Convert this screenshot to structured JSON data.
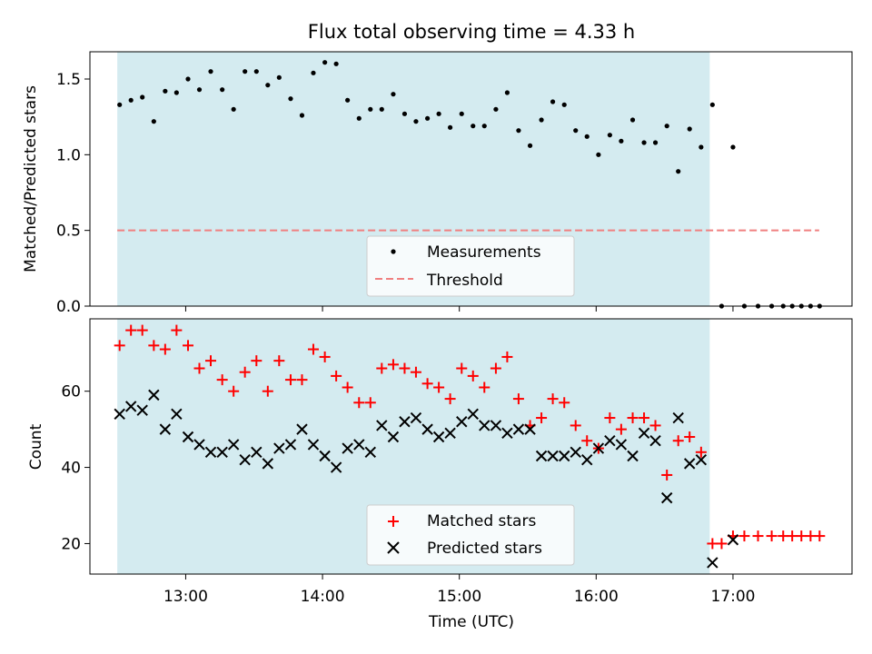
{
  "chart_data": [
    {
      "type": "scatter",
      "title": "Flux total observing time = 4.33 h",
      "ylabel": "Matched/Predicted stars",
      "xlabel": "",
      "ylim": [
        0,
        1.68
      ],
      "yticks": [
        "0.0",
        "0.5",
        "1.0",
        "1.5"
      ],
      "shaded_span": {
        "x_start": 12.5,
        "x_end": 16.83,
        "color": "#d4ebf0"
      },
      "threshold": {
        "name": "Threshold",
        "value": 0.5,
        "color": "#f08080"
      },
      "legend": {
        "placement": "lower-center",
        "entries": [
          "Measurements",
          "Threshold"
        ]
      },
      "series": [
        {
          "name": "Measurements",
          "color": "#000000",
          "marker": "dot",
          "x": [
            12.517,
            12.6,
            12.683,
            12.767,
            12.85,
            12.933,
            13.017,
            13.1,
            13.183,
            13.267,
            13.35,
            13.433,
            13.517,
            13.6,
            13.683,
            13.767,
            13.85,
            13.933,
            14.017,
            14.1,
            14.183,
            14.267,
            14.35,
            14.433,
            14.517,
            14.6,
            14.683,
            14.767,
            14.85,
            14.933,
            15.017,
            15.1,
            15.183,
            15.267,
            15.35,
            15.433,
            15.517,
            15.6,
            15.683,
            15.767,
            15.85,
            15.933,
            16.017,
            16.1,
            16.183,
            16.267,
            16.35,
            16.433,
            16.517,
            16.6,
            16.683,
            16.767,
            16.85,
            17.0
          ],
          "y": [
            1.33,
            1.36,
            1.38,
            1.22,
            1.42,
            1.41,
            1.5,
            1.43,
            1.55,
            1.43,
            1.3,
            1.55,
            1.55,
            1.46,
            1.51,
            1.37,
            1.26,
            1.54,
            1.61,
            1.6,
            1.36,
            1.24,
            1.3,
            1.3,
            1.4,
            1.27,
            1.22,
            1.24,
            1.27,
            1.18,
            1.27,
            1.19,
            1.19,
            1.3,
            1.41,
            1.16,
            1.06,
            1.23,
            1.35,
            1.33,
            1.16,
            1.12,
            1.0,
            1.13,
            1.09,
            1.23,
            1.08,
            1.08,
            1.19,
            0.89,
            1.17,
            1.05,
            1.33,
            1.05
          ]
        },
        {
          "name": "",
          "color": "#000000",
          "marker": "dot",
          "x": [
            16.917,
            17.083,
            17.183,
            17.283,
            17.367,
            17.433,
            17.5,
            17.567,
            17.633
          ],
          "y": [
            0,
            0,
            0,
            0,
            0,
            0,
            0,
            0,
            0
          ]
        }
      ]
    },
    {
      "type": "scatter",
      "title": "",
      "ylabel": "Count",
      "xlabel": "Time (UTC)",
      "xlim": [
        12.3,
        17.87
      ],
      "ylim": [
        12,
        79
      ],
      "xticks": [
        "13:00",
        "14:00",
        "15:00",
        "16:00",
        "17:00"
      ],
      "yticks": [
        "20",
        "40",
        "60"
      ],
      "shaded_span": {
        "x_start": 12.5,
        "x_end": 16.83,
        "color": "#d4ebf0"
      },
      "legend": {
        "placement": "lower-center",
        "entries": [
          "Matched stars",
          "Predicted stars"
        ]
      },
      "series": [
        {
          "name": "Matched stars",
          "color": "#ff0000",
          "marker": "plus",
          "x": [
            12.517,
            12.6,
            12.683,
            12.767,
            12.85,
            12.933,
            13.017,
            13.1,
            13.183,
            13.267,
            13.35,
            13.433,
            13.517,
            13.6,
            13.683,
            13.767,
            13.85,
            13.933,
            14.017,
            14.1,
            14.183,
            14.267,
            14.35,
            14.433,
            14.517,
            14.6,
            14.683,
            14.767,
            14.85,
            14.933,
            15.017,
            15.1,
            15.183,
            15.267,
            15.35,
            15.433,
            15.517,
            15.6,
            15.683,
            15.767,
            15.85,
            15.933,
            16.017,
            16.1,
            16.183,
            16.267,
            16.35,
            16.433,
            16.517,
            16.6,
            16.683,
            16.767,
            16.85,
            16.917,
            17.0,
            17.083,
            17.183,
            17.283,
            17.367,
            17.433,
            17.5,
            17.567,
            17.633
          ],
          "y": [
            72,
            76,
            76,
            72,
            71,
            76,
            72,
            66,
            68,
            63,
            60,
            65,
            68,
            60,
            68,
            63,
            63,
            71,
            69,
            64,
            61,
            57,
            57,
            66,
            67,
            66,
            65,
            62,
            61,
            58,
            66,
            64,
            61,
            66,
            69,
            58,
            51,
            53,
            58,
            57,
            51,
            47,
            45,
            53,
            50,
            53,
            53,
            51,
            38,
            47,
            48,
            44,
            20,
            20,
            22,
            22,
            22,
            22,
            22,
            22,
            22,
            22,
            22
          ]
        },
        {
          "name": "Predicted stars",
          "color": "#000000",
          "marker": "x",
          "x": [
            12.517,
            12.6,
            12.683,
            12.767,
            12.85,
            12.933,
            13.017,
            13.1,
            13.183,
            13.267,
            13.35,
            13.433,
            13.517,
            13.6,
            13.683,
            13.767,
            13.85,
            13.933,
            14.017,
            14.1,
            14.183,
            14.267,
            14.35,
            14.433,
            14.517,
            14.6,
            14.683,
            14.767,
            14.85,
            14.933,
            15.017,
            15.1,
            15.183,
            15.267,
            15.35,
            15.433,
            15.517,
            15.6,
            15.683,
            15.767,
            15.85,
            15.933,
            16.017,
            16.1,
            16.183,
            16.267,
            16.35,
            16.433,
            16.517,
            16.6,
            16.683,
            16.767,
            16.85,
            17.0
          ],
          "y": [
            54,
            56,
            55,
            59,
            50,
            54,
            48,
            46,
            44,
            44,
            46,
            42,
            44,
            41,
            45,
            46,
            50,
            46,
            43,
            40,
            45,
            46,
            44,
            51,
            48,
            52,
            53,
            50,
            48,
            49,
            52,
            54,
            51,
            51,
            49,
            50,
            50,
            43,
            43,
            43,
            44,
            42,
            45,
            47,
            46,
            43,
            49,
            47,
            32,
            53,
            41,
            42,
            15,
            21
          ]
        }
      ]
    }
  ]
}
